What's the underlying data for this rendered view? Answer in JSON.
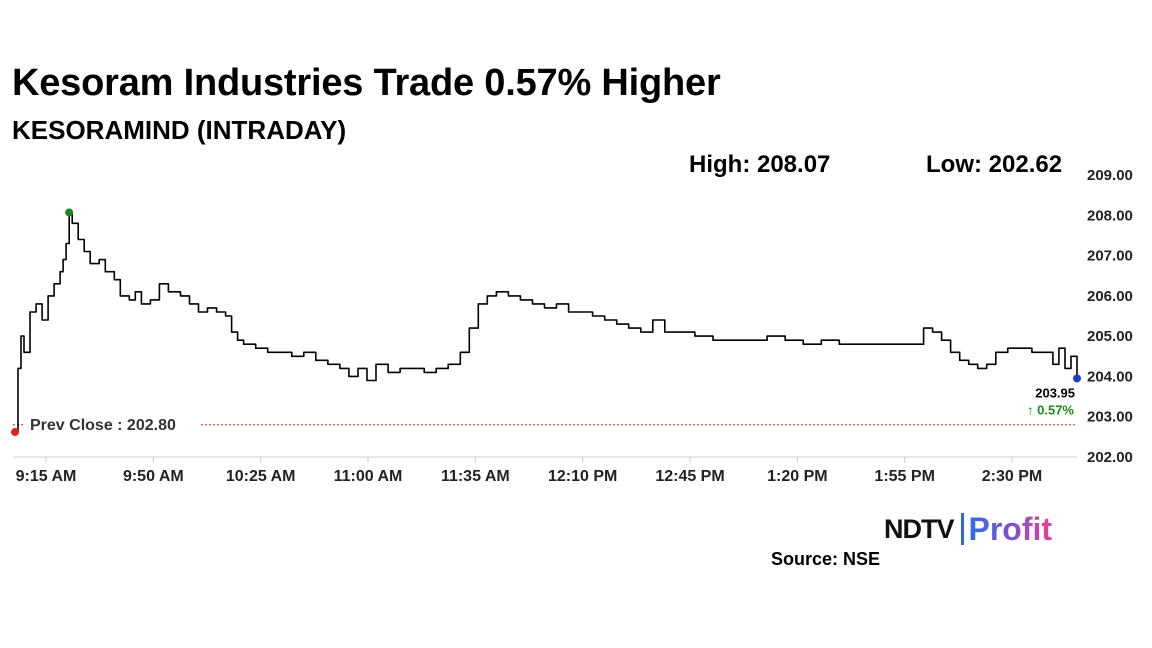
{
  "header": {
    "title": "Kesoram Industries Trade 0.57% Higher",
    "subtitle": "KESORAMIND (INTRADAY)",
    "high_label": "High: 208.07",
    "low_label": "Low: 202.62"
  },
  "footer": {
    "brand_ndtv": "NDTV",
    "brand_profit": "Profit",
    "source": "Source: NSE"
  },
  "colors": {
    "line": "#000000",
    "prev_close": "#c0392b",
    "high_marker": "#1a8a1a",
    "low_marker": "#e02020",
    "last_marker": "#1f3fbf",
    "change_positive": "#1a8a1a"
  },
  "chart_data": {
    "type": "line",
    "title": "Kesoram Industries Trade 0.57% Higher",
    "xlabel": "",
    "ylabel": "",
    "ylim": [
      202,
      209
    ],
    "yticks": [
      "209.00",
      "208.00",
      "207.00",
      "206.00",
      "205.00",
      "204.00",
      "203.00",
      "202.00"
    ],
    "x_categories": [
      "9:15 AM",
      "9:50 AM",
      "10:25 AM",
      "11:00 AM",
      "11:35 AM",
      "12:10 PM",
      "12:45 PM",
      "1:20 PM",
      "1:55 PM",
      "2:30 PM"
    ],
    "grid": false,
    "prev_close": 202.8,
    "prev_close_label": "Prev Close : 202.80",
    "high": 208.07,
    "low": 202.62,
    "last_price": 203.95,
    "last_price_label": "203.95",
    "change_label": "↑ 0.57%",
    "series": [
      {
        "values": [
          [
            0,
            202.62
          ],
          [
            1,
            204.2
          ],
          [
            2,
            205.0
          ],
          [
            3,
            204.6
          ],
          [
            5,
            205.6
          ],
          [
            7,
            205.8
          ],
          [
            9,
            205.4
          ],
          [
            11,
            206.0
          ],
          [
            13,
            206.3
          ],
          [
            15,
            206.6
          ],
          [
            16,
            206.9
          ],
          [
            17,
            207.3
          ],
          [
            18,
            208.07
          ],
          [
            19,
            207.8
          ],
          [
            21,
            207.4
          ],
          [
            23,
            207.1
          ],
          [
            25,
            206.8
          ],
          [
            28,
            206.9
          ],
          [
            30,
            206.6
          ],
          [
            33,
            206.4
          ],
          [
            35,
            206.0
          ],
          [
            38,
            205.9
          ],
          [
            40,
            206.1
          ],
          [
            42,
            205.8
          ],
          [
            45,
            205.9
          ],
          [
            48,
            206.3
          ],
          [
            51,
            206.1
          ],
          [
            55,
            206.0
          ],
          [
            58,
            205.8
          ],
          [
            61,
            205.6
          ],
          [
            64,
            205.7
          ],
          [
            67,
            205.6
          ],
          [
            70,
            205.5
          ],
          [
            72,
            205.1
          ],
          [
            74,
            204.9
          ],
          [
            76,
            204.8
          ],
          [
            80,
            204.7
          ],
          [
            84,
            204.6
          ],
          [
            88,
            204.6
          ],
          [
            92,
            204.5
          ],
          [
            96,
            204.6
          ],
          [
            100,
            204.4
          ],
          [
            104,
            204.3
          ],
          [
            108,
            204.2
          ],
          [
            111,
            204.0
          ],
          [
            114,
            204.2
          ],
          [
            117,
            203.9
          ],
          [
            120,
            204.3
          ],
          [
            124,
            204.1
          ],
          [
            128,
            204.2
          ],
          [
            132,
            204.2
          ],
          [
            136,
            204.1
          ],
          [
            140,
            204.2
          ],
          [
            144,
            204.3
          ],
          [
            148,
            204.6
          ],
          [
            151,
            205.2
          ],
          [
            154,
            205.8
          ],
          [
            157,
            206.0
          ],
          [
            160,
            206.1
          ],
          [
            164,
            206.0
          ],
          [
            168,
            205.9
          ],
          [
            172,
            205.8
          ],
          [
            176,
            205.7
          ],
          [
            180,
            205.8
          ],
          [
            184,
            205.6
          ],
          [
            188,
            205.6
          ],
          [
            192,
            205.5
          ],
          [
            196,
            205.4
          ],
          [
            200,
            205.3
          ],
          [
            204,
            205.2
          ],
          [
            208,
            205.1
          ],
          [
            212,
            205.4
          ],
          [
            216,
            205.1
          ],
          [
            220,
            205.1
          ],
          [
            226,
            205.0
          ],
          [
            232,
            204.9
          ],
          [
            238,
            204.9
          ],
          [
            244,
            204.9
          ],
          [
            250,
            205.0
          ],
          [
            256,
            204.9
          ],
          [
            262,
            204.8
          ],
          [
            268,
            204.9
          ],
          [
            274,
            204.8
          ],
          [
            280,
            204.8
          ],
          [
            286,
            204.8
          ],
          [
            292,
            204.8
          ],
          [
            298,
            204.8
          ],
          [
            302,
            205.2
          ],
          [
            305,
            205.1
          ],
          [
            308,
            204.9
          ],
          [
            311,
            204.6
          ],
          [
            314,
            204.4
          ],
          [
            317,
            204.3
          ],
          [
            320,
            204.2
          ],
          [
            323,
            204.3
          ],
          [
            326,
            204.6
          ],
          [
            330,
            204.7
          ],
          [
            334,
            204.7
          ],
          [
            338,
            204.6
          ],
          [
            342,
            204.6
          ],
          [
            345,
            204.3
          ],
          [
            347,
            204.7
          ],
          [
            349,
            204.2
          ],
          [
            351,
            204.5
          ],
          [
            353,
            203.95
          ]
        ]
      }
    ],
    "x_unit_note": "minutes after 9:15 AM"
  }
}
